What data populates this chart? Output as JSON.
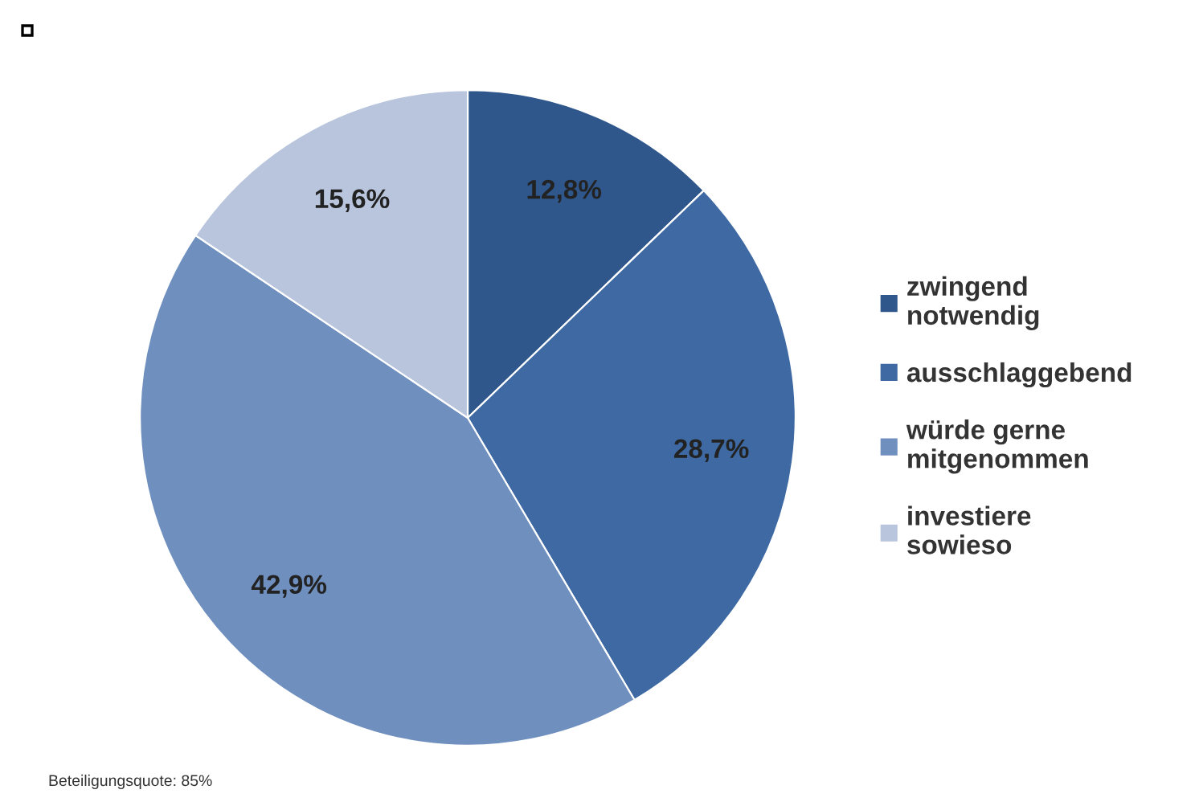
{
  "chart_data": {
    "type": "pie",
    "categories": [
      "zwingend\nnotwendig",
      "ausschlaggebend",
      "würde gerne\nmitgenommen",
      "investiere\nsowieso"
    ],
    "values": [
      12.8,
      28.7,
      42.9,
      15.6
    ],
    "value_labels": [
      "12,8%",
      "28,7%",
      "42,9%",
      "15,6%"
    ],
    "colors": [
      "#2f578c",
      "#3e69a3",
      "#6f8fbf",
      "#b8c5dd"
    ],
    "legend": "right",
    "annotations": [
      "Beteiligungsquote: 85%"
    ]
  }
}
